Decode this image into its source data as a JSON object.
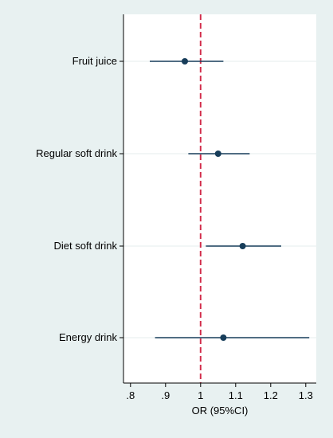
{
  "chart_data": {
    "type": "forest",
    "xlabel": "OR (95%CI)",
    "xlim": [
      0.78,
      1.33
    ],
    "xticks": [
      {
        "value": 0.8,
        "label": ".8"
      },
      {
        "value": 0.9,
        "label": ".9"
      },
      {
        "value": 1.0,
        "label": "1"
      },
      {
        "value": 1.1,
        "label": "1.1"
      },
      {
        "value": 1.2,
        "label": "1.2"
      },
      {
        "value": 1.3,
        "label": "1.3"
      }
    ],
    "reference_line": 1.0,
    "rows": [
      {
        "label": "Fruit juice",
        "or": 0.955,
        "lower": 0.855,
        "upper": 1.065
      },
      {
        "label": "Regular soft drink",
        "or": 1.05,
        "lower": 0.965,
        "upper": 1.14
      },
      {
        "label": "Diet soft drink",
        "or": 1.12,
        "lower": 1.015,
        "upper": 1.23
      },
      {
        "label": "Energy drink",
        "or": 1.065,
        "lower": 0.87,
        "upper": 1.31
      }
    ],
    "colors": {
      "background": "#e8f1f1",
      "plot_background": "#ffffff",
      "point": "#173d5a",
      "gridline": "#e6eeee",
      "reference_line": "#d22e4c"
    }
  }
}
